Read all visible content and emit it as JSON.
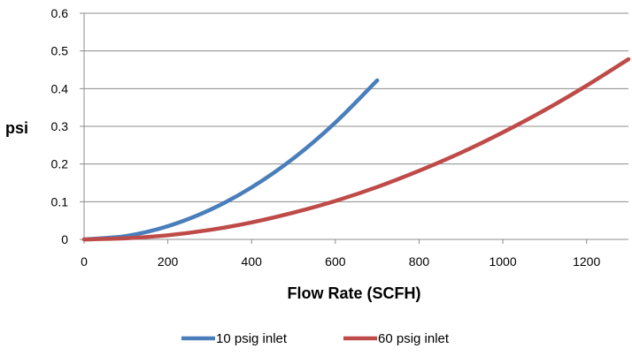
{
  "chart_data": {
    "type": "line",
    "title": "",
    "xlabel": "Flow Rate (SCFH)",
    "ylabel": "psi",
    "xlim": [
      0,
      1300
    ],
    "ylim": [
      0,
      0.6
    ],
    "x_ticks": [
      0,
      200,
      400,
      600,
      800,
      1000,
      1200
    ],
    "x_tick_labels": [
      "0",
      "200",
      "400",
      "600",
      "800",
      "1000",
      "1200"
    ],
    "y_ticks": [
      0,
      0.1,
      0.2,
      0.3,
      0.4,
      0.5,
      0.6
    ],
    "y_tick_labels": [
      "0",
      "0.1",
      "0.2",
      "0.3",
      "0.4",
      "0.5",
      "0.6"
    ],
    "grid": "horizontal",
    "legend_position": "bottom",
    "series": [
      {
        "name": "10 psig inlet",
        "color": "#4a7ebb",
        "x": [
          0,
          100,
          200,
          300,
          400,
          500,
          600,
          700
        ],
        "y": [
          0,
          0.009,
          0.035,
          0.078,
          0.138,
          0.215,
          0.31,
          0.422
        ]
      },
      {
        "name": "60 psig inlet",
        "color": "#be4b48",
        "x": [
          0,
          100,
          200,
          300,
          400,
          500,
          600,
          700,
          800,
          900,
          1000,
          1100,
          1200,
          1300
        ],
        "y": [
          0,
          0.003,
          0.011,
          0.025,
          0.045,
          0.071,
          0.102,
          0.139,
          0.182,
          0.23,
          0.284,
          0.343,
          0.408,
          0.478
        ]
      }
    ]
  }
}
